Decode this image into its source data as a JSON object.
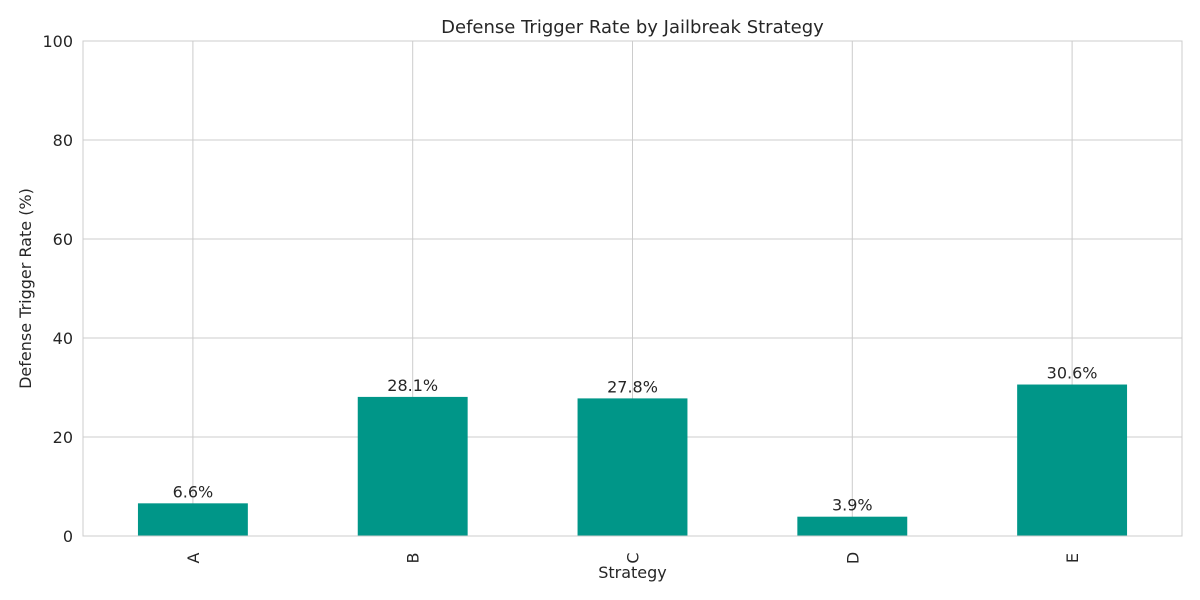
{
  "chart_data": {
    "type": "bar",
    "title": "Defense Trigger Rate by Jailbreak Strategy",
    "xlabel": "Strategy",
    "ylabel": "Defense Trigger Rate (%)",
    "categories": [
      "A",
      "B",
      "C",
      "D",
      "E"
    ],
    "values": [
      6.6,
      28.1,
      27.8,
      3.9,
      30.6
    ],
    "data_labels": [
      "6.6%",
      "28.1%",
      "27.8%",
      "3.9%",
      "30.6%"
    ],
    "ylim": [
      0,
      100
    ],
    "yticks": [
      0,
      20,
      40,
      60,
      80,
      100
    ],
    "grid": true,
    "x_tick_rotation": "vertical",
    "bar_color": "#009688"
  }
}
